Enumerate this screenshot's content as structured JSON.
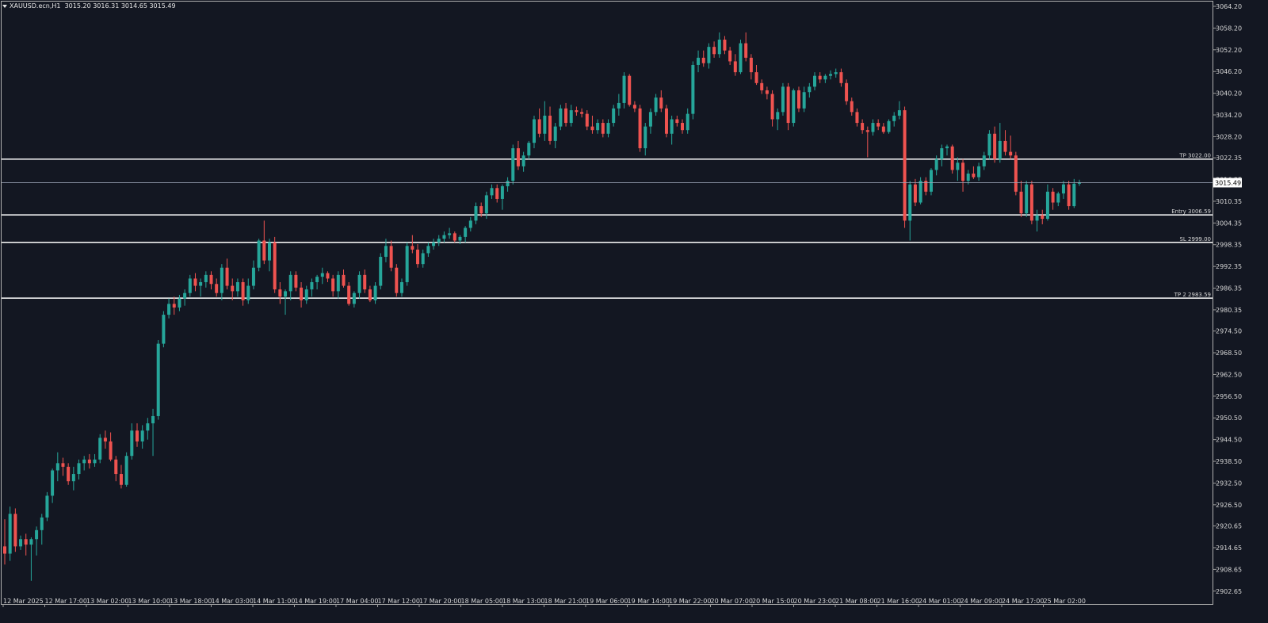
{
  "header": {
    "symbol": "XAUUSD.ecn,H1",
    "ohlc": "3015.20 3016.31 3014.65 3015.49"
  },
  "colors": {
    "background": "#131722",
    "bull": "#26a69a",
    "bear": "#ef5350",
    "axis_text": "#d6d6d6",
    "level_line": "#ffffff"
  },
  "chart_data": {
    "type": "candlestick",
    "title": "XAUUSD.ecn,H1",
    "xlabel": "",
    "ylabel": "",
    "ylim": [
      2902.6,
      3064.2
    ],
    "grid": false,
    "y_ticks": [
      "3064.20",
      "3058.20",
      "3052.20",
      "3046.20",
      "3040.20",
      "3034.20",
      "3028.20",
      "3022.35",
      "3016.35",
      "3010.35",
      "3004.35",
      "2998.35",
      "2992.35",
      "2986.35",
      "2980.35",
      "2974.50",
      "2968.50",
      "2962.50",
      "2956.50",
      "2950.50",
      "2944.50",
      "2938.50",
      "2932.50",
      "2926.50",
      "2920.65",
      "2914.65",
      "2908.65",
      "2902.65"
    ],
    "x_ticks": [
      "12 Mar 2025",
      "12 Mar 17:00",
      "13 Mar 02:00",
      "13 Mar 10:00",
      "13 Mar 18:00",
      "14 Mar 03:00",
      "14 Mar 11:00",
      "14 Mar 19:00",
      "17 Mar 04:00",
      "17 Mar 12:00",
      "17 Mar 20:00",
      "18 Mar 05:00",
      "18 Mar 13:00",
      "18 Mar 21:00",
      "19 Mar 06:00",
      "19 Mar 14:00",
      "19 Mar 22:00",
      "20 Mar 07:00",
      "20 Mar 15:00",
      "20 Mar 23:00",
      "21 Mar 08:00",
      "21 Mar 16:00",
      "24 Mar 01:00",
      "24 Mar 09:00",
      "24 Mar 17:00",
      "25 Mar 02:00"
    ],
    "current_price": "3015.49",
    "levels": [
      {
        "label": "TP 3022.00",
        "value": 3022.0
      },
      {
        "label": "Entry 3006.59",
        "value": 3006.59
      },
      {
        "label": "SL 2999.00",
        "value": 2999.0
      },
      {
        "label": "TP 2 2983.59",
        "value": 2983.59
      }
    ],
    "candles": [
      [
        2915.0,
        2922.5,
        2910.0,
        2913.0
      ],
      [
        2913.0,
        2926.0,
        2911.0,
        2924.0
      ],
      [
        2924.0,
        2925.5,
        2913.5,
        2915.0
      ],
      [
        2915.0,
        2918.0,
        2914.0,
        2917.0
      ],
      [
        2917.0,
        2918.5,
        2912.5,
        2915.5
      ],
      [
        2915.5,
        2917.5,
        2905.5,
        2917.0
      ],
      [
        2917.0,
        2920.5,
        2912.5,
        2919.5
      ],
      [
        2919.5,
        2924.0,
        2915.5,
        2923.0
      ],
      [
        2923.0,
        2930.0,
        2922.0,
        2929.0
      ],
      [
        2929.0,
        2936.5,
        2927.0,
        2936.0
      ],
      [
        2936.0,
        2941.0,
        2933.0,
        2938.0
      ],
      [
        2938.0,
        2939.5,
        2934.5,
        2937.0
      ],
      [
        2937.0,
        2938.0,
        2932.0,
        2933.0
      ],
      [
        2933.0,
        2937.0,
        2930.5,
        2935.0
      ],
      [
        2935.0,
        2939.0,
        2933.5,
        2938.0
      ],
      [
        2938.0,
        2940.0,
        2936.0,
        2939.0
      ],
      [
        2939.0,
        2940.5,
        2936.5,
        2938.0
      ],
      [
        2938.0,
        2940.5,
        2937.0,
        2939.0
      ],
      [
        2939.0,
        2946.0,
        2938.0,
        2945.0
      ],
      [
        2945.0,
        2947.0,
        2942.0,
        2944.0
      ],
      [
        2944.0,
        2946.5,
        2938.5,
        2939.0
      ],
      [
        2939.0,
        2940.0,
        2933.0,
        2935.0
      ],
      [
        2935.0,
        2937.5,
        2931.0,
        2932.0
      ],
      [
        2932.0,
        2941.0,
        2931.5,
        2940.0
      ],
      [
        2940.0,
        2949.0,
        2939.0,
        2947.0
      ],
      [
        2947.0,
        2949.0,
        2942.5,
        2944.0
      ],
      [
        2944.0,
        2948.5,
        2942.0,
        2947.0
      ],
      [
        2947.0,
        2950.5,
        2944.5,
        2949.0
      ],
      [
        2949.0,
        2953.0,
        2940.0,
        2951.0
      ],
      [
        2951.0,
        2972.0,
        2950.0,
        2971.0
      ],
      [
        2971.0,
        2980.0,
        2970.0,
        2979.0
      ],
      [
        2979.0,
        2983.5,
        2978.0,
        2982.0
      ],
      [
        2982.0,
        2984.0,
        2979.0,
        2981.0
      ],
      [
        2981.0,
        2984.5,
        2980.0,
        2983.5
      ],
      [
        2983.5,
        2986.0,
        2981.5,
        2985.0
      ],
      [
        2985.0,
        2990.0,
        2984.0,
        2989.0
      ],
      [
        2989.0,
        2990.5,
        2985.5,
        2987.0
      ],
      [
        2987.0,
        2989.0,
        2984.0,
        2988.0
      ],
      [
        2988.0,
        2991.0,
        2986.5,
        2990.0
      ],
      [
        2990.0,
        2991.0,
        2986.0,
        2987.5
      ],
      [
        2987.5,
        2989.0,
        2984.0,
        2985.0
      ],
      [
        2985.0,
        2993.0,
        2983.0,
        2992.0
      ],
      [
        2992.0,
        2994.5,
        2986.0,
        2987.0
      ],
      [
        2987.0,
        2989.0,
        2983.0,
        2985.5
      ],
      [
        2985.5,
        2989.0,
        2984.0,
        2988.0
      ],
      [
        2988.0,
        2989.0,
        2981.5,
        2983.0
      ],
      [
        2983.0,
        2989.0,
        2982.0,
        2987.0
      ],
      [
        2987.0,
        2994.0,
        2986.0,
        2992.0
      ],
      [
        2992.0,
        3000.0,
        2991.0,
        2999.5
      ],
      [
        2999.5,
        3005.0,
        2993.0,
        2994.0
      ],
      [
        2994.0,
        3000.0,
        2991.0,
        2999.0
      ],
      [
        2999.0,
        3000.5,
        2985.0,
        2986.0
      ],
      [
        2986.0,
        2988.0,
        2982.0,
        2984.0
      ],
      [
        2984.0,
        2986.0,
        2979.0,
        2985.5
      ],
      [
        2985.5,
        2991.0,
        2983.0,
        2990.0
      ],
      [
        2990.0,
        2991.0,
        2985.5,
        2986.5
      ],
      [
        2986.5,
        2988.0,
        2981.0,
        2983.0
      ],
      [
        2983.0,
        2987.0,
        2982.0,
        2986.0
      ],
      [
        2986.0,
        2989.0,
        2984.0,
        2988.0
      ],
      [
        2988.0,
        2990.0,
        2986.0,
        2989.5
      ],
      [
        2989.5,
        2992.0,
        2987.5,
        2990.5
      ],
      [
        2990.5,
        2991.0,
        2988.0,
        2989.0
      ],
      [
        2989.0,
        2990.0,
        2984.0,
        2985.5
      ],
      [
        2985.5,
        2991.0,
        2983.5,
        2990.0
      ],
      [
        2990.0,
        2991.5,
        2986.5,
        2987.0
      ],
      [
        2987.0,
        2988.0,
        2981.5,
        2982.0
      ],
      [
        2982.0,
        2985.5,
        2981.0,
        2985.0
      ],
      [
        2985.0,
        2991.0,
        2983.5,
        2990.0
      ],
      [
        2990.0,
        2991.5,
        2985.0,
        2986.0
      ],
      [
        2986.0,
        2987.0,
        2982.5,
        2983.0
      ],
      [
        2983.0,
        2988.0,
        2982.0,
        2987.0
      ],
      [
        2987.0,
        2996.0,
        2986.0,
        2995.0
      ],
      [
        2995.0,
        3000.0,
        2993.5,
        2998.0
      ],
      [
        2998.0,
        2999.5,
        2991.0,
        2992.0
      ],
      [
        2992.0,
        2993.0,
        2984.0,
        2985.0
      ],
      [
        2985.0,
        2989.0,
        2984.0,
        2988.0
      ],
      [
        2988.0,
        2999.0,
        2987.0,
        2998.0
      ],
      [
        2998.0,
        3001.0,
        2996.0,
        2997.0
      ],
      [
        2997.0,
        2998.5,
        2992.0,
        2993.0
      ],
      [
        2993.0,
        2997.0,
        2992.0,
        2996.0
      ],
      [
        2996.0,
        2999.0,
        2995.0,
        2998.0
      ],
      [
        2998.0,
        3000.0,
        2997.0,
        2999.0
      ],
      [
        2999.0,
        3001.0,
        2998.0,
        3000.0
      ],
      [
        3000.0,
        3002.0,
        2999.0,
        3001.0
      ],
      [
        3001.0,
        3003.0,
        3000.0,
        3001.5
      ],
      [
        3001.5,
        3002.0,
        2999.0,
        2999.5
      ],
      [
        2999.5,
        3001.0,
        2998.5,
        3000.5
      ],
      [
        3000.5,
        3003.5,
        2999.0,
        3003.0
      ],
      [
        3003.0,
        3006.0,
        3002.0,
        3005.0
      ],
      [
        3005.0,
        3010.0,
        3004.0,
        3009.0
      ],
      [
        3009.0,
        3010.0,
        3006.0,
        3007.0
      ],
      [
        3007.0,
        3013.0,
        3005.5,
        3012.0
      ],
      [
        3012.0,
        3015.0,
        3011.0,
        3014.0
      ],
      [
        3014.0,
        3015.0,
        3010.0,
        3011.0
      ],
      [
        3011.0,
        3015.0,
        3008.0,
        3014.5
      ],
      [
        3014.5,
        3017.0,
        3013.0,
        3016.0
      ],
      [
        3016.0,
        3026.0,
        3015.0,
        3025.0
      ],
      [
        3025.0,
        3027.0,
        3019.0,
        3020.0
      ],
      [
        3020.0,
        3024.0,
        3018.5,
        3023.0
      ],
      [
        3023.0,
        3027.0,
        3022.0,
        3026.5
      ],
      [
        3026.5,
        3034.0,
        3025.0,
        3033.0
      ],
      [
        3033.0,
        3036.0,
        3028.0,
        3029.0
      ],
      [
        3029.0,
        3038.0,
        3027.0,
        3034.0
      ],
      [
        3034.0,
        3036.5,
        3026.0,
        3027.0
      ],
      [
        3027.0,
        3032.0,
        3025.0,
        3031.0
      ],
      [
        3031.0,
        3037.0,
        3030.0,
        3036.0
      ],
      [
        3036.0,
        3037.5,
        3031.0,
        3032.0
      ],
      [
        3032.0,
        3037.0,
        3031.0,
        3035.5
      ],
      [
        3035.5,
        3036.5,
        3034.0,
        3035.0
      ],
      [
        3035.0,
        3036.0,
        3033.5,
        3034.5
      ],
      [
        3034.5,
        3035.5,
        3030.0,
        3031.0
      ],
      [
        3031.0,
        3034.0,
        3029.0,
        3030.0
      ],
      [
        3030.0,
        3033.0,
        3029.0,
        3032.0
      ],
      [
        3032.0,
        3033.0,
        3028.0,
        3029.0
      ],
      [
        3029.0,
        3033.0,
        3028.0,
        3032.0
      ],
      [
        3032.0,
        3037.0,
        3031.0,
        3036.0
      ],
      [
        3036.0,
        3040.0,
        3034.0,
        3037.5
      ],
      [
        3037.5,
        3046.0,
        3036.0,
        3045.0
      ],
      [
        3045.0,
        3045.5,
        3036.5,
        3037.0
      ],
      [
        3037.0,
        3038.0,
        3035.0,
        3036.0
      ],
      [
        3036.0,
        3037.0,
        3024.0,
        3025.0
      ],
      [
        3025.0,
        3032.0,
        3023.0,
        3031.0
      ],
      [
        3031.0,
        3036.0,
        3029.0,
        3035.0
      ],
      [
        3035.0,
        3040.0,
        3034.0,
        3039.0
      ],
      [
        3039.0,
        3041.0,
        3035.0,
        3036.0
      ],
      [
        3036.0,
        3037.0,
        3028.0,
        3029.0
      ],
      [
        3029.0,
        3034.0,
        3026.0,
        3033.0
      ],
      [
        3033.0,
        3034.0,
        3031.0,
        3032.0
      ],
      [
        3032.0,
        3033.0,
        3029.0,
        3030.0
      ],
      [
        3030.0,
        3036.0,
        3029.0,
        3034.5
      ],
      [
        3034.5,
        3049.0,
        3033.0,
        3048.0
      ],
      [
        3048.0,
        3052.0,
        3046.0,
        3050.0
      ],
      [
        3050.0,
        3052.0,
        3047.5,
        3048.5
      ],
      [
        3048.5,
        3054.0,
        3047.0,
        3053.0
      ],
      [
        3053.0,
        3054.5,
        3050.0,
        3051.0
      ],
      [
        3051.0,
        3057.0,
        3050.0,
        3055.0
      ],
      [
        3055.0,
        3056.0,
        3051.0,
        3052.0
      ],
      [
        3052.0,
        3053.0,
        3048.0,
        3049.0
      ],
      [
        3049.0,
        3051.0,
        3045.0,
        3046.0
      ],
      [
        3046.0,
        3055.0,
        3045.5,
        3054.0
      ],
      [
        3054.0,
        3057.0,
        3049.0,
        3050.0
      ],
      [
        3050.0,
        3051.0,
        3044.0,
        3046.0
      ],
      [
        3046.0,
        3048.0,
        3042.5,
        3043.0
      ],
      [
        3043.0,
        3044.0,
        3040.0,
        3041.0
      ],
      [
        3041.0,
        3042.0,
        3038.5,
        3040.0
      ],
      [
        3040.0,
        3041.0,
        3031.0,
        3033.0
      ],
      [
        3033.0,
        3036.0,
        3030.0,
        3035.0
      ],
      [
        3035.0,
        3043.0,
        3034.0,
        3042.0
      ],
      [
        3042.0,
        3043.0,
        3030.0,
        3032.0
      ],
      [
        3032.0,
        3041.5,
        3031.0,
        3041.0
      ],
      [
        3041.0,
        3042.0,
        3035.0,
        3036.0
      ],
      [
        3036.0,
        3042.0,
        3035.0,
        3040.5
      ],
      [
        3040.5,
        3043.0,
        3039.0,
        3042.0
      ],
      [
        3042.0,
        3046.0,
        3041.0,
        3045.0
      ],
      [
        3045.0,
        3046.0,
        3043.0,
        3044.0
      ],
      [
        3044.0,
        3045.5,
        3043.0,
        3045.0
      ],
      [
        3045.0,
        3046.5,
        3044.0,
        3045.5
      ],
      [
        3045.5,
        3047.0,
        3044.5,
        3046.0
      ],
      [
        3046.0,
        3047.0,
        3042.0,
        3043.0
      ],
      [
        3043.0,
        3044.0,
        3037.0,
        3038.0
      ],
      [
        3038.0,
        3039.0,
        3034.0,
        3035.0
      ],
      [
        3035.0,
        3036.0,
        3031.0,
        3032.0
      ],
      [
        3032.0,
        3033.0,
        3029.0,
        3030.0
      ],
      [
        3030.0,
        3031.0,
        3022.5,
        3029.5
      ],
      [
        3029.5,
        3033.0,
        3028.5,
        3032.0
      ],
      [
        3032.0,
        3033.0,
        3030.0,
        3031.0
      ],
      [
        3031.0,
        3032.0,
        3029.0,
        3029.5
      ],
      [
        3029.5,
        3033.0,
        3029.0,
        3032.5
      ],
      [
        3032.5,
        3035.0,
        3031.0,
        3034.0
      ],
      [
        3034.0,
        3038.0,
        3033.0,
        3035.5
      ],
      [
        3035.5,
        3036.5,
        3003.0,
        3005.0
      ],
      [
        3005.0,
        3016.0,
        2999.5,
        3015.0
      ],
      [
        3015.0,
        3016.5,
        3009.0,
        3010.0
      ],
      [
        3010.0,
        3017.0,
        3009.5,
        3016.0
      ],
      [
        3016.0,
        3017.0,
        3012.0,
        3013.0
      ],
      [
        3013.0,
        3019.5,
        3012.0,
        3019.0
      ],
      [
        3019.0,
        3023.0,
        3017.5,
        3022.0
      ],
      [
        3022.0,
        3026.0,
        3020.0,
        3025.0
      ],
      [
        3025.0,
        3026.0,
        3023.0,
        3025.5
      ],
      [
        3025.5,
        3026.0,
        3018.0,
        3019.0
      ],
      [
        3019.0,
        3022.5,
        3016.0,
        3021.0
      ],
      [
        3021.0,
        3022.0,
        3013.0,
        3016.0
      ],
      [
        3016.0,
        3019.0,
        3015.0,
        3018.0
      ],
      [
        3018.0,
        3020.0,
        3016.5,
        3017.0
      ],
      [
        3017.0,
        3021.0,
        3016.0,
        3020.0
      ],
      [
        3020.0,
        3024.0,
        3019.0,
        3023.0
      ],
      [
        3023.0,
        3030.0,
        3022.0,
        3029.0
      ],
      [
        3029.0,
        3031.0,
        3021.0,
        3022.0
      ],
      [
        3022.0,
        3032.0,
        3021.0,
        3027.0
      ],
      [
        3027.0,
        3030.0,
        3023.0,
        3024.0
      ],
      [
        3024.0,
        3028.5,
        3022.0,
        3023.0
      ],
      [
        3023.0,
        3024.0,
        3012.0,
        3013.0
      ],
      [
        3013.0,
        3016.0,
        3006.0,
        3007.0
      ],
      [
        3007.0,
        3016.0,
        3006.0,
        3015.0
      ],
      [
        3015.0,
        3016.0,
        3004.0,
        3005.0
      ],
      [
        3005.0,
        3008.0,
        3002.0,
        3006.5
      ],
      [
        3006.5,
        3008.0,
        3004.0,
        3005.5
      ],
      [
        3005.5,
        3015.0,
        3005.0,
        3013.0
      ],
      [
        3013.0,
        3014.0,
        3008.0,
        3010.0
      ],
      [
        3010.0,
        3013.0,
        3009.0,
        3012.5
      ],
      [
        3012.5,
        3016.0,
        3011.0,
        3015.0
      ],
      [
        3015.0,
        3016.0,
        3008.0,
        3009.0
      ],
      [
        3009.0,
        3016.5,
        3008.5,
        3015.2
      ],
      [
        3015.2,
        3016.3,
        3014.6,
        3015.5
      ]
    ]
  }
}
